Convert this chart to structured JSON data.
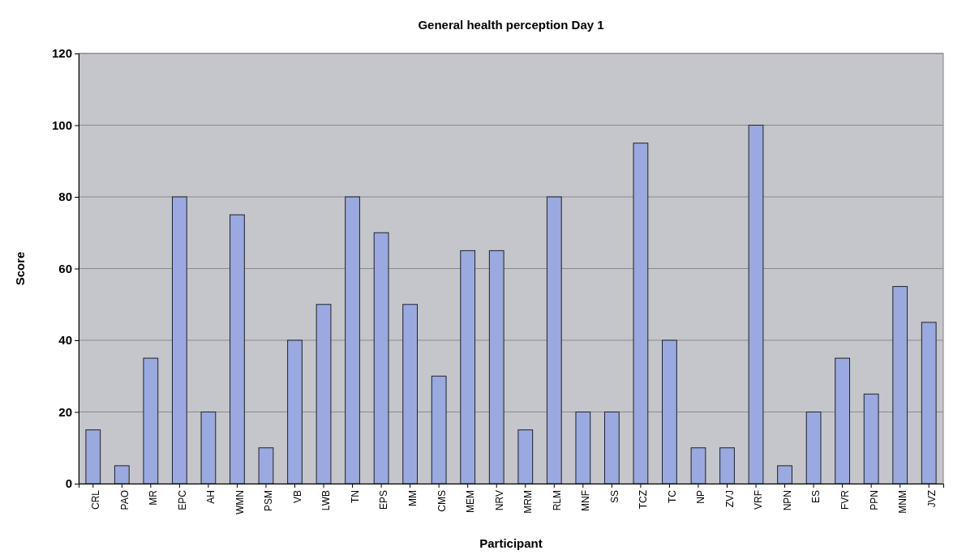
{
  "chart_data": {
    "type": "bar",
    "title": "General health perception Day 1",
    "xlabel": "Participant",
    "ylabel": "Score",
    "categories": [
      "CRL",
      "PAO",
      "MR",
      "EPC",
      "AH",
      "WMN",
      "PSM",
      "VB",
      "LWB",
      "TN",
      "EPS",
      "MM",
      "CMS",
      "MEM",
      "NRV",
      "MRM",
      "RLM",
      "MNF",
      "SS",
      "TCZ",
      "TC",
      "NP",
      "ZVJ",
      "VRF",
      "NPN",
      "ES",
      "FVR",
      "PPN",
      "MNM",
      "JVZ"
    ],
    "values": [
      15,
      5,
      35,
      80,
      20,
      75,
      10,
      40,
      50,
      80,
      70,
      50,
      30,
      65,
      65,
      15,
      80,
      20,
      20,
      95,
      40,
      10,
      10,
      100,
      5,
      20,
      35,
      25,
      55,
      45
    ],
    "color": "#9aa9e0",
    "ylim": [
      0,
      120
    ],
    "yticks": [
      0,
      20,
      40,
      60,
      80,
      100,
      120
    ],
    "grid": "y"
  }
}
